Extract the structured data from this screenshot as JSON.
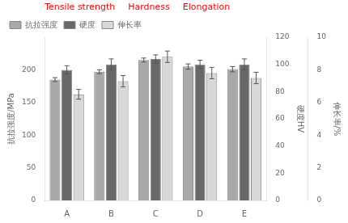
{
  "chart_data": {
    "type": "bar",
    "categories": [
      "A",
      "B",
      "C",
      "D",
      "E"
    ],
    "series": [
      {
        "name": "抗拉强度",
        "color": "#A8A8A8",
        "values": [
          185,
          197,
          215,
          205,
          201
        ],
        "errors": [
          3,
          3,
          3,
          4,
          4
        ],
        "axis": "y"
      },
      {
        "name": "硬度",
        "color": "#686868",
        "values": [
          96,
          100,
          104,
          100,
          100
        ],
        "errors": [
          3,
          4,
          3,
          3,
          4
        ],
        "axis": "y3"
      },
      {
        "name": "伸长率",
        "color": "#D8D8D8",
        "values": [
          6.5,
          7.3,
          8.8,
          7.8,
          7.5
        ],
        "errors": [
          0.3,
          0.35,
          0.35,
          0.35,
          0.35
        ],
        "axis": "y2"
      }
    ],
    "ylabel": "抗拉强度/MPa",
    "y2label": "伸长率/%",
    "y3label": "硬度HV",
    "ylim": [
      0,
      250
    ],
    "yticks": [
      0,
      50,
      100,
      150,
      200
    ],
    "y2lim": [
      0,
      10
    ],
    "y2ticks": [
      0,
      2,
      4,
      6,
      8,
      10
    ],
    "y3lim": [
      0,
      120
    ],
    "y3ticks": [
      0,
      20,
      40,
      60,
      80,
      100,
      120
    ],
    "grid": false,
    "legend": "upper left",
    "annotations": [
      {
        "text": "Tensile strength",
        "color": "red"
      },
      {
        "text": "Hardness",
        "color": "red"
      },
      {
        "text": "Elongation",
        "color": "red"
      }
    ]
  }
}
